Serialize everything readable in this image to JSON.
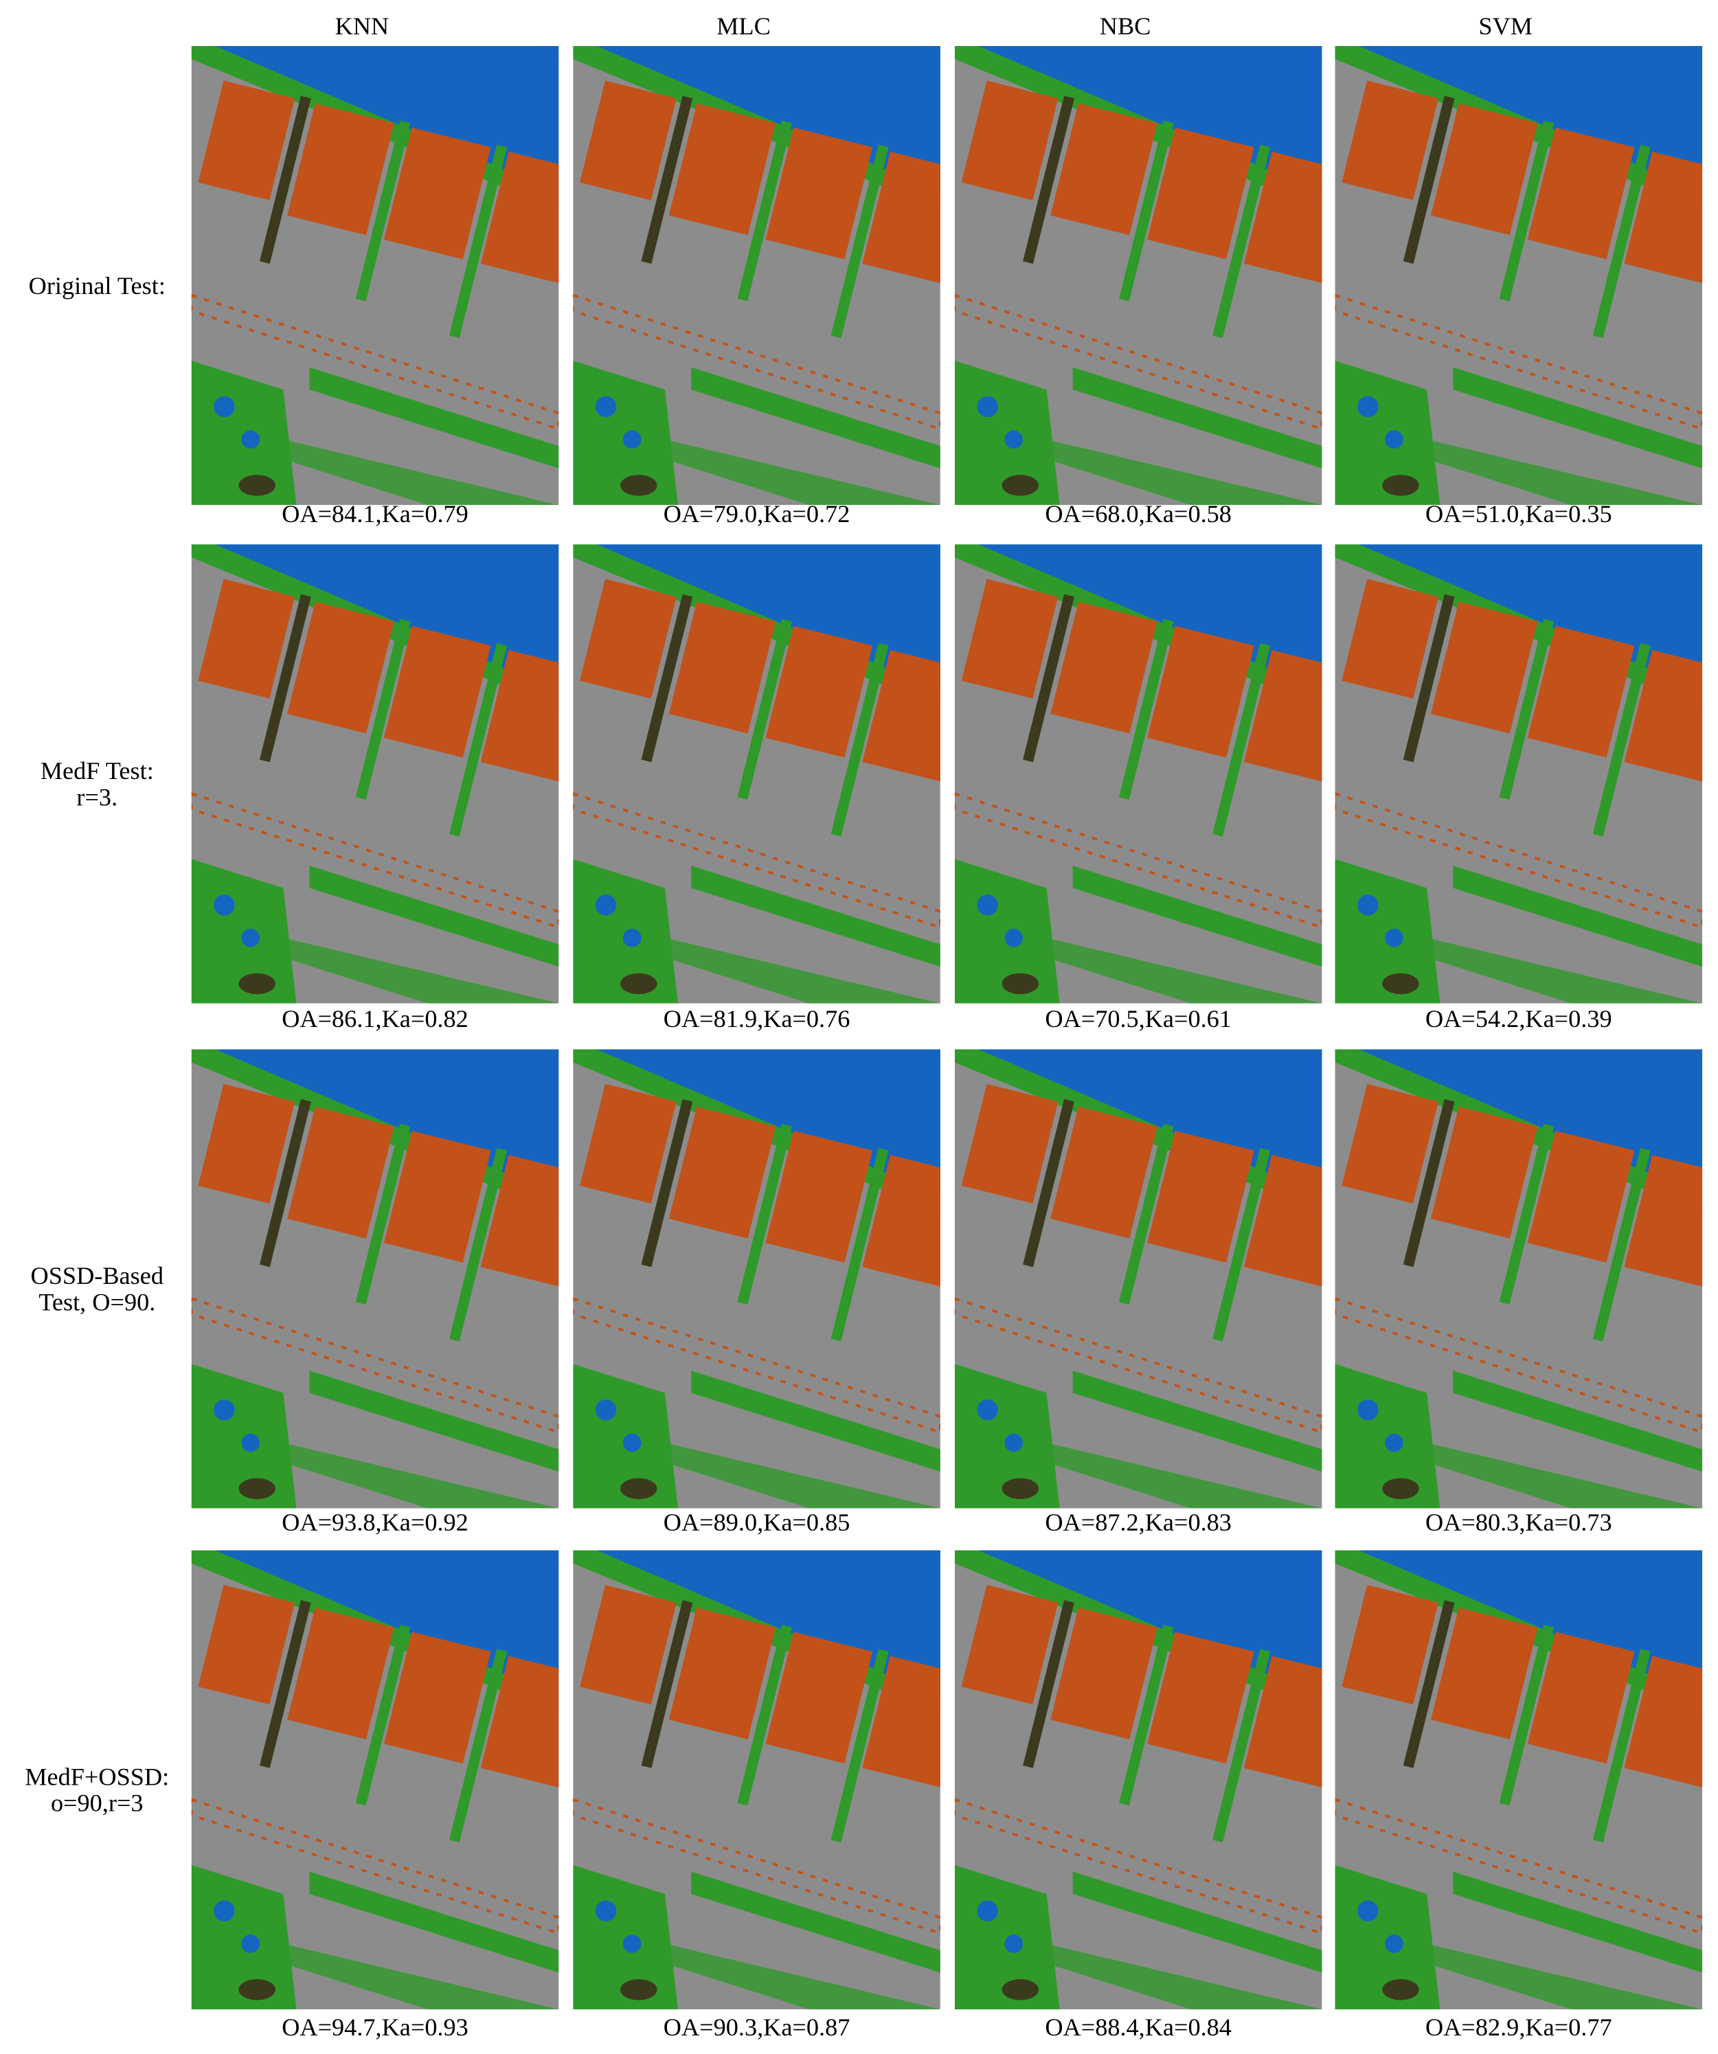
{
  "headers": [
    "KNN",
    "MLC",
    "NBC",
    "SVM"
  ],
  "rows": [
    {
      "label_lines": [
        "Original Test:"
      ],
      "captions": [
        "OA=84.1,Ka=0.79",
        "OA=79.0,Ka=0.72",
        "OA=68.0,Ka=0.58",
        "OA=51.0,Ka=0.35"
      ]
    },
    {
      "label_lines": [
        "MedF Test:",
        "r=3."
      ],
      "captions": [
        "OA=86.1,Ka=0.82",
        "OA=81.9,Ka=0.76",
        "OA=70.5,Ka=0.61",
        "OA=54.2,Ka=0.39"
      ]
    },
    {
      "label_lines": [
        "OSSD-Based",
        "Test, O=90."
      ],
      "captions": [
        "OA=93.8,Ka=0.92",
        "OA=89.0,Ka=0.85",
        "OA=87.2,Ka=0.83",
        "OA=80.3,Ka=0.73"
      ]
    },
    {
      "label_lines": [
        "MedF+OSSD:",
        "o=90,r=3"
      ],
      "captions": [
        "OA=94.7,Ka=0.93",
        "OA=90.3,Ka=0.87",
        "OA=88.4,Ka=0.84",
        "OA=82.9,Ka=0.77"
      ]
    }
  ]
}
